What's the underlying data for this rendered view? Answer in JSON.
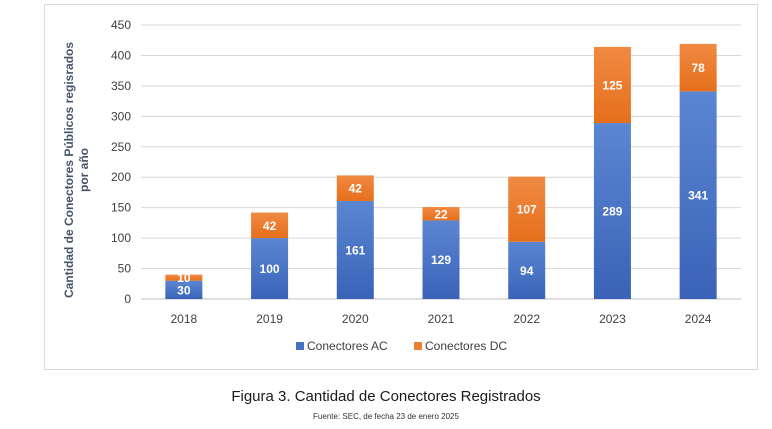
{
  "colors": {
    "ac": "#4472c4",
    "dc": "#ed7d31",
    "grid": "#d9d9d9",
    "axis": "#bfbfbf"
  },
  "caption": "Figura 3. Cantidad de Conectores Registrados",
  "source": "Fuente: SEC, de fecha 23 de enero 2025",
  "chart_data": {
    "type": "bar",
    "stacked": true,
    "categories": [
      "2018",
      "2019",
      "2020",
      "2021",
      "2022",
      "2023",
      "2024"
    ],
    "series": [
      {
        "name": "Conectores AC",
        "values": [
          30,
          100,
          161,
          129,
          94,
          289,
          341
        ]
      },
      {
        "name": "Conectores DC",
        "values": [
          10,
          42,
          42,
          22,
          107,
          125,
          78
        ]
      }
    ],
    "ylabel": "Cantidad de Conectores Públicos regisrados por año",
    "ylim": [
      0,
      450
    ],
    "yticks": [
      0,
      50,
      100,
      150,
      200,
      250,
      300,
      350,
      400,
      450
    ],
    "grid": true,
    "legend": "bottom"
  }
}
